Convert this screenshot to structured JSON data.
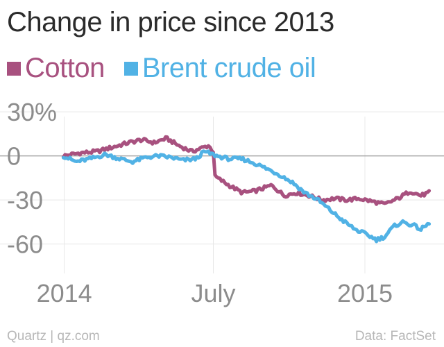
{
  "chart_data": {
    "type": "line",
    "title": "Change in price since 2013",
    "xlabel": "",
    "ylabel": "",
    "y_ticks": [
      "30%",
      "0",
      "-30",
      "-60"
    ],
    "y_tick_values": [
      30,
      0,
      -30,
      -60
    ],
    "ylim": [
      -80,
      40
    ],
    "x_ticks": [
      "2014",
      "July",
      "2015"
    ],
    "x_tick_values": [
      "2014-01-01",
      "2014-07-01",
      "2015-01-01"
    ],
    "xlim": [
      "2013-10-15",
      "2015-04-07"
    ],
    "grid": true,
    "legend_position": "top-left",
    "series": [
      {
        "name": "Cotton",
        "color": "#a8517f",
        "points": [
          [
            "2013-12-31",
            0
          ],
          [
            "2014-01-20",
            2
          ],
          [
            "2014-02-10",
            3
          ],
          [
            "2014-03-01",
            6
          ],
          [
            "2014-03-20",
            9
          ],
          [
            "2014-04-05",
            11
          ],
          [
            "2014-04-20",
            9
          ],
          [
            "2014-05-05",
            12
          ],
          [
            "2014-05-20",
            7
          ],
          [
            "2014-06-05",
            3
          ],
          [
            "2014-06-25",
            7
          ],
          [
            "2014-07-01",
            3
          ],
          [
            "2014-07-03",
            -14
          ],
          [
            "2014-07-20",
            -20
          ],
          [
            "2014-08-05",
            -25
          ],
          [
            "2014-08-20",
            -24
          ],
          [
            "2014-09-10",
            -20
          ],
          [
            "2014-09-25",
            -27
          ],
          [
            "2014-10-10",
            -25
          ],
          [
            "2014-10-25",
            -27
          ],
          [
            "2014-11-10",
            -30
          ],
          [
            "2014-11-25",
            -29
          ],
          [
            "2014-12-10",
            -30
          ],
          [
            "2014-12-25",
            -29
          ],
          [
            "2015-01-10",
            -31
          ],
          [
            "2015-01-25",
            -33
          ],
          [
            "2015-02-10",
            -29
          ],
          [
            "2015-02-25",
            -24
          ],
          [
            "2015-03-10",
            -27
          ],
          [
            "2015-03-20",
            -25
          ]
        ]
      },
      {
        "name": "Brent crude oil",
        "color": "#51b2e5",
        "points": [
          [
            "2013-12-31",
            0
          ],
          [
            "2014-01-15",
            -4
          ],
          [
            "2014-02-01",
            -2
          ],
          [
            "2014-02-20",
            1
          ],
          [
            "2014-03-10",
            -2
          ],
          [
            "2014-03-25",
            -4
          ],
          [
            "2014-04-10",
            -1
          ],
          [
            "2014-04-25",
            0
          ],
          [
            "2014-05-10",
            -1
          ],
          [
            "2014-05-25",
            -3
          ],
          [
            "2014-06-10",
            -2
          ],
          [
            "2014-06-20",
            3
          ],
          [
            "2014-07-05",
            0
          ],
          [
            "2014-07-20",
            -2
          ],
          [
            "2014-08-05",
            -2
          ],
          [
            "2014-08-20",
            -5
          ],
          [
            "2014-09-05",
            -9
          ],
          [
            "2014-09-20",
            -13
          ],
          [
            "2014-10-05",
            -18
          ],
          [
            "2014-10-20",
            -25
          ],
          [
            "2014-11-05",
            -30
          ],
          [
            "2014-11-20",
            -37
          ],
          [
            "2014-12-05",
            -44
          ],
          [
            "2014-12-20",
            -50
          ],
          [
            "2015-01-05",
            -54
          ],
          [
            "2015-01-15",
            -57
          ],
          [
            "2015-01-25",
            -55
          ],
          [
            "2015-02-05",
            -48
          ],
          [
            "2015-02-15",
            -45
          ],
          [
            "2015-02-28",
            -47
          ],
          [
            "2015-03-10",
            -50
          ],
          [
            "2015-03-20",
            -46
          ]
        ]
      }
    ]
  },
  "footer": {
    "source_left": "Quartz | qz.com",
    "source_right": "Data: FactSet"
  }
}
